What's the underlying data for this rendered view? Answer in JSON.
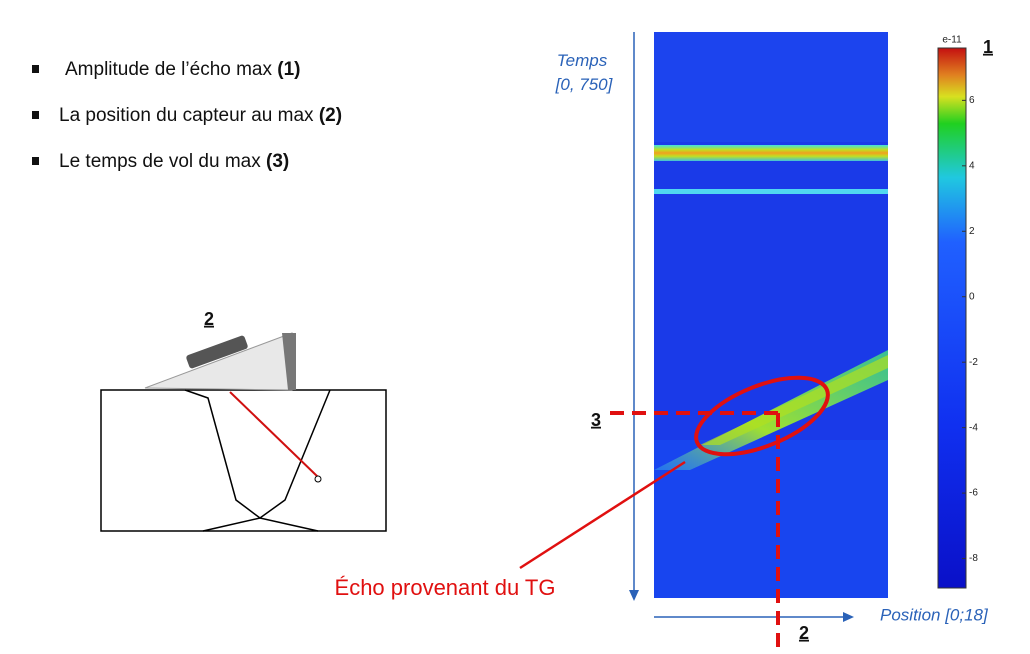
{
  "bullets": [
    {
      "text": "Amplitude de l’écho max",
      "ref": "(1)"
    },
    {
      "text": "La position du capteur au max",
      "ref": "(2)"
    },
    {
      "text": "Le temps de vol du max",
      "ref": "(3)"
    }
  ],
  "diagram": {
    "probe_label": "2"
  },
  "bscan": {
    "time_axis": "Temps\n[0, 750]",
    "position_axis": "Position [0;18]",
    "time_marker": "3",
    "position_marker": "2",
    "echo_label": "Écho provenant du TG"
  },
  "colorbar": {
    "exponent": "e-11",
    "amplitude_marker": "1",
    "range": [
      -8.9,
      7.6
    ],
    "ticks": [
      6,
      4,
      2,
      0,
      -2,
      -4,
      -6,
      -8
    ]
  }
}
